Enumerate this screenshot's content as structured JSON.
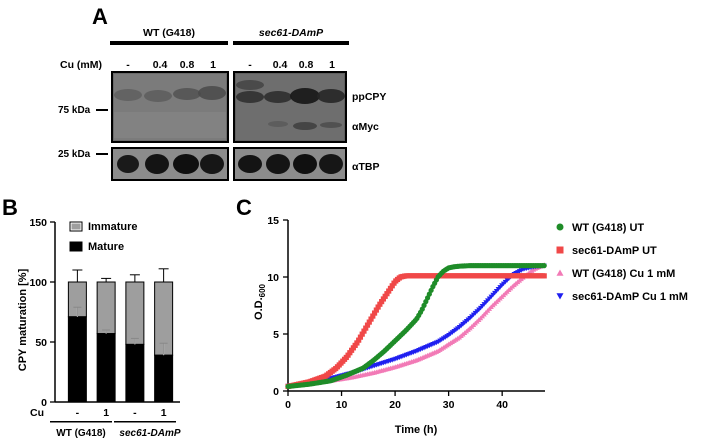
{
  "panel_a": {
    "letter": "A",
    "group_wt": "WT (G418)",
    "group_mut": "sec61-DAmP",
    "cu_label": "Cu (mM)",
    "lanes": [
      "-",
      "0.4",
      "0.8",
      "1",
      "-",
      "0.4",
      "0.8",
      "1"
    ],
    "marker_75": "75 kDa",
    "marker_25": "25 kDa",
    "label_ppcpy": "ppCPY",
    "label_amyc": "αMyc",
    "label_atbp": "αTBP"
  },
  "panel_b": {
    "letter": "B"
  },
  "panel_c": {
    "letter": "C"
  },
  "chart_data": [
    {
      "type": "bar",
      "panel": "B",
      "ylabel": "CPY maturation [%]",
      "ylim": [
        0,
        150
      ],
      "yticks": [
        0,
        50,
        100,
        150
      ],
      "x_row_label": "Cu",
      "categories": [
        "-",
        "1",
        "-",
        "1"
      ],
      "group_labels": [
        "WT (G418)",
        "sec61-DAmP"
      ],
      "series": [
        {
          "name": "Mature",
          "values": [
            71,
            57,
            48,
            39
          ],
          "errors": [
            8,
            3,
            5,
            10
          ],
          "color": "#000000"
        },
        {
          "name": "Immature",
          "values": [
            29,
            43,
            52,
            61
          ],
          "errors": [
            10,
            3,
            6,
            11
          ],
          "color": "#9e9e9e"
        }
      ],
      "legend_position": "top-right"
    },
    {
      "type": "scatter",
      "panel": "C",
      "xlabel": "Time (h)",
      "ylabel": "O.D.",
      "ylabel_sub": "600",
      "xlim": [
        0,
        48
      ],
      "ylim": [
        0,
        15
      ],
      "xticks": [
        0,
        10,
        20,
        30,
        40
      ],
      "yticks": [
        0,
        5,
        10,
        15
      ],
      "legend_position": "right",
      "series": [
        {
          "name": "WT (G418) UT",
          "color": "#1e8c28",
          "marker": "circle",
          "x": [
            0,
            4,
            8,
            11,
            14,
            16,
            18,
            20,
            22,
            24,
            25,
            26,
            27,
            28,
            29,
            30,
            31,
            32,
            34,
            36,
            38,
            40,
            44,
            48
          ],
          "y": [
            0.4,
            0.6,
            0.9,
            1.4,
            2.0,
            2.7,
            3.5,
            4.4,
            5.3,
            6.3,
            7.1,
            8.1,
            9.1,
            10.0,
            10.5,
            10.8,
            10.9,
            10.95,
            11.0,
            11.0,
            11.0,
            11.0,
            11.0,
            11.0
          ]
        },
        {
          "name": "sec61-DAmP UT",
          "color": "#f04848",
          "marker": "square",
          "x": [
            0,
            4,
            7,
            9,
            11,
            13,
            15,
            17,
            19,
            20,
            21,
            22,
            24,
            28,
            32,
            36,
            40,
            44,
            48
          ],
          "y": [
            0.4,
            0.8,
            1.3,
            2.0,
            3.0,
            4.3,
            5.9,
            7.5,
            8.9,
            9.6,
            10.0,
            10.1,
            10.1,
            10.1,
            10.1,
            10.1,
            10.1,
            10.1,
            10.1
          ]
        },
        {
          "name": "WT (G418) Cu 1 mM",
          "color": "#f27ab6",
          "marker": "triangle-up",
          "x": [
            0,
            4,
            8,
            12,
            16,
            20,
            24,
            28,
            32,
            34,
            36,
            38,
            40,
            42,
            44,
            46,
            48
          ],
          "y": [
            0.4,
            0.6,
            0.9,
            1.2,
            1.6,
            2.1,
            2.7,
            3.5,
            4.7,
            5.5,
            6.4,
            7.4,
            8.3,
            9.2,
            10.0,
            10.7,
            11.1
          ]
        },
        {
          "name": "sec61-DAmP Cu 1 mM",
          "color": "#1f1ff0",
          "marker": "triangle-down",
          "x": [
            0,
            4,
            8,
            12,
            16,
            20,
            24,
            28,
            30,
            32,
            34,
            36,
            38,
            40,
            42,
            44,
            46,
            48
          ],
          "y": [
            0.45,
            0.7,
            1.1,
            1.6,
            2.2,
            2.8,
            3.5,
            4.3,
            4.9,
            5.6,
            6.4,
            7.3,
            8.3,
            9.3,
            10.2,
            10.7,
            10.9,
            11.0
          ]
        }
      ]
    }
  ]
}
